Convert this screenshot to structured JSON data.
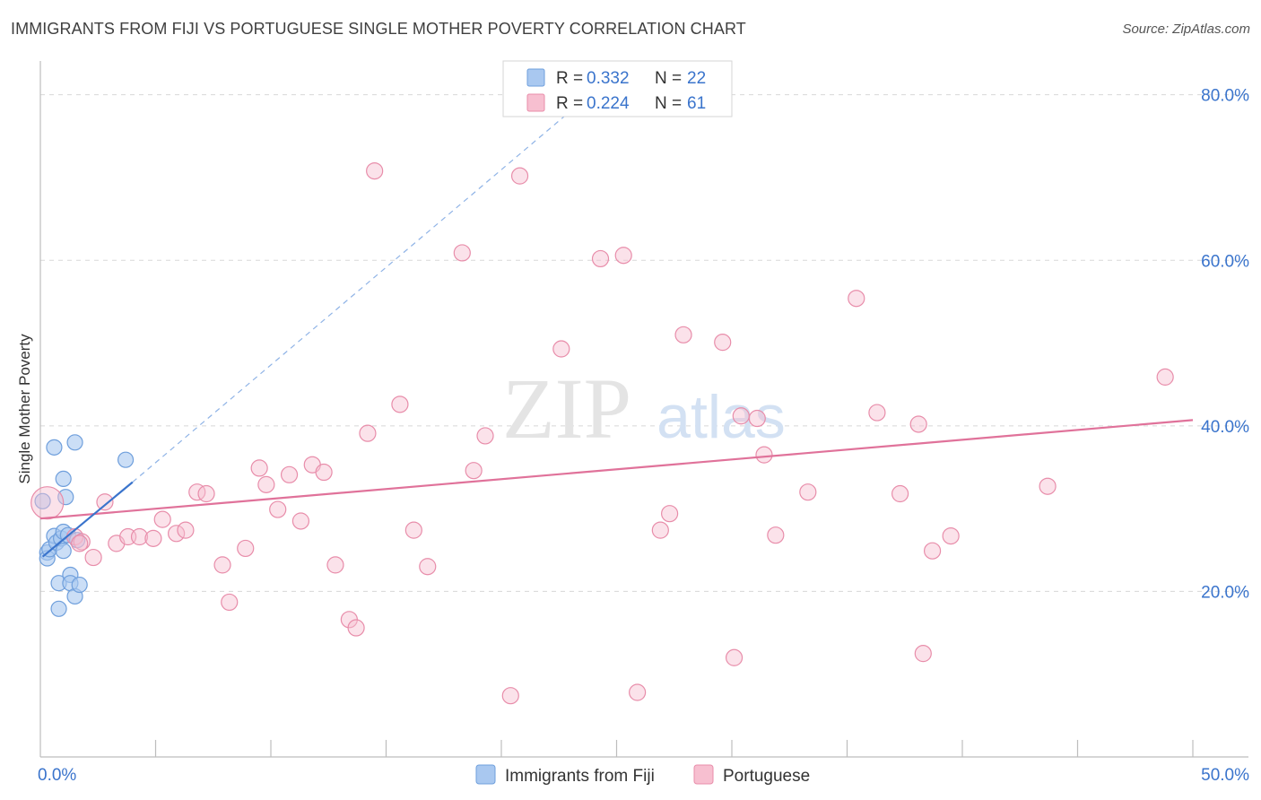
{
  "header": {
    "title": "IMMIGRANTS FROM FIJI VS PORTUGUESE SINGLE MOTHER POVERTY CORRELATION CHART",
    "source": "Source: ZipAtlas.com"
  },
  "watermark": {
    "zip": "ZIP",
    "atlas": "atlas"
  },
  "colors": {
    "fiji_fill": "#a9c8f0",
    "fiji_stroke": "#6f9fdc",
    "fiji_line": "#3a74cc",
    "portuguese_fill": "#f7bfd0",
    "portuguese_stroke": "#e88daa",
    "portuguese_line": "#e0729a",
    "tick_label": "#3a74cc",
    "grid": "#d8d8d8"
  },
  "chart_data": {
    "type": "scatter",
    "title": "IMMIGRANTS FROM FIJI VS PORTUGUESE SINGLE MOTHER POVERTY CORRELATION CHART",
    "xlabel": "",
    "ylabel": "Single Mother Poverty",
    "xlim": [
      0,
      50
    ],
    "ylim": [
      0,
      83
    ],
    "x_tick_labels": [
      {
        "value": 0,
        "label": "0.0%"
      },
      {
        "value": 50,
        "label": "50.0%"
      }
    ],
    "y_tick_labels": [
      {
        "value": 20,
        "label": "20.0%"
      },
      {
        "value": 40,
        "label": "40.0%"
      },
      {
        "value": 60,
        "label": "60.0%"
      },
      {
        "value": 80,
        "label": "80.0%"
      }
    ],
    "grid": true,
    "legend_position": "top-center",
    "legend": [
      {
        "series": "Immigrants from Fiji",
        "r_label": "R =",
        "r_value": "0.332",
        "n_label": "N =",
        "n_value": "22"
      },
      {
        "series": "Portuguese",
        "r_label": "R =",
        "r_value": "0.224",
        "n_label": "N =",
        "n_value": "61"
      }
    ],
    "series": [
      {
        "name": "Immigrants from Fiji",
        "points": [
          [
            0.1,
            30.9
          ],
          [
            0.3,
            24.7
          ],
          [
            0.3,
            24.0
          ],
          [
            0.4,
            25.1
          ],
          [
            0.6,
            37.4
          ],
          [
            0.6,
            26.7
          ],
          [
            0.7,
            25.9
          ],
          [
            0.8,
            17.9
          ],
          [
            0.8,
            21.0
          ],
          [
            0.9,
            26.4
          ],
          [
            1.0,
            27.2
          ],
          [
            1.0,
            33.6
          ],
          [
            1.0,
            24.9
          ],
          [
            1.1,
            31.4
          ],
          [
            1.2,
            26.8
          ],
          [
            1.3,
            22.0
          ],
          [
            1.3,
            21.0
          ],
          [
            1.5,
            19.4
          ],
          [
            1.5,
            38.0
          ],
          [
            1.6,
            26.2
          ],
          [
            1.7,
            20.8
          ],
          [
            3.7,
            35.9
          ]
        ],
        "trend": {
          "x": [
            0.1,
            4.0
          ],
          "y": [
            24.2,
            33.2
          ]
        },
        "trend_extension": {
          "x": [
            4.0,
            23.2
          ],
          "y": [
            33.2,
            78.5
          ]
        }
      },
      {
        "name": "Portuguese",
        "points": [
          [
            0.3,
            30.7
          ],
          [
            1.5,
            26.6
          ],
          [
            1.8,
            26.0
          ],
          [
            2.3,
            24.1
          ],
          [
            2.8,
            30.8
          ],
          [
            3.3,
            25.8
          ],
          [
            3.8,
            26.6
          ],
          [
            4.3,
            26.6
          ],
          [
            4.9,
            26.4
          ],
          [
            5.3,
            28.7
          ],
          [
            5.9,
            27.0
          ],
          [
            6.3,
            27.4
          ],
          [
            6.8,
            32.0
          ],
          [
            7.2,
            31.8
          ],
          [
            7.9,
            23.2
          ],
          [
            8.2,
            18.7
          ],
          [
            8.9,
            25.2
          ],
          [
            9.5,
            34.9
          ],
          [
            9.8,
            32.9
          ],
          [
            10.3,
            29.9
          ],
          [
            10.8,
            34.1
          ],
          [
            11.3,
            28.5
          ],
          [
            11.8,
            35.3
          ],
          [
            12.3,
            34.4
          ],
          [
            12.8,
            23.2
          ],
          [
            13.4,
            16.6
          ],
          [
            13.7,
            15.6
          ],
          [
            14.2,
            39.1
          ],
          [
            14.5,
            70.8
          ],
          [
            15.6,
            42.6
          ],
          [
            16.2,
            27.4
          ],
          [
            16.8,
            23.0
          ],
          [
            18.3,
            60.9
          ],
          [
            18.8,
            34.6
          ],
          [
            19.3,
            38.8
          ],
          [
            20.4,
            7.4
          ],
          [
            20.8,
            70.2
          ],
          [
            22.6,
            49.3
          ],
          [
            24.3,
            60.2
          ],
          [
            25.3,
            60.6
          ],
          [
            25.9,
            7.8
          ],
          [
            26.9,
            27.4
          ],
          [
            27.3,
            29.4
          ],
          [
            27.9,
            51.0
          ],
          [
            29.6,
            50.1
          ],
          [
            30.1,
            12.0
          ],
          [
            30.4,
            41.2
          ],
          [
            31.1,
            40.9
          ],
          [
            31.4,
            36.5
          ],
          [
            31.9,
            26.8
          ],
          [
            33.3,
            32.0
          ],
          [
            35.4,
            55.4
          ],
          [
            36.3,
            41.6
          ],
          [
            37.3,
            31.8
          ],
          [
            38.1,
            40.2
          ],
          [
            38.3,
            12.5
          ],
          [
            38.7,
            24.9
          ],
          [
            39.5,
            26.7
          ],
          [
            43.7,
            32.7
          ],
          [
            48.8,
            45.9
          ],
          [
            1.7,
            25.8
          ]
        ],
        "trend": {
          "x": [
            0,
            50
          ],
          "y": [
            28.8,
            40.7
          ]
        }
      }
    ]
  }
}
